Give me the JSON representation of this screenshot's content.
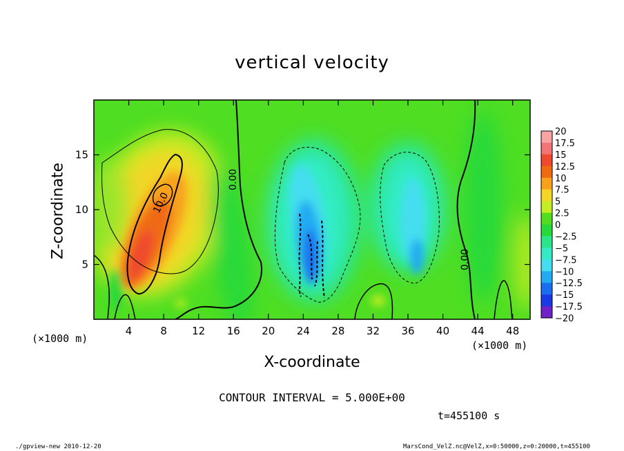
{
  "chart_data": {
    "type": "heatmap",
    "title": "vertical velocity",
    "xlabel": "X-coordinate",
    "ylabel": "Z-coordinate",
    "x_unit": "(×1000 m)",
    "xlim": [
      0,
      50
    ],
    "ylim": [
      0,
      20
    ],
    "x_ticks": [
      4,
      8,
      12,
      16,
      20,
      24,
      28,
      32,
      36,
      40,
      44,
      48
    ],
    "y_ticks": [
      5,
      10,
      15
    ],
    "contour_interval": "CONTOUR INTERVAL = 5.000E+00",
    "contour_labels": [
      "10.0",
      "0.00",
      "0.00"
    ],
    "colorbar": {
      "levels": [
        20,
        17.5,
        15,
        12.5,
        10,
        7.5,
        5,
        2.5,
        0,
        -2.5,
        -5,
        -7.5,
        -10,
        -12.5,
        -15,
        -17.5,
        -20
      ],
      "colors": [
        "#f9a3a3",
        "#f27474",
        "#ef4a2e",
        "#f06a12",
        "#f7a21a",
        "#f3d527",
        "#c6ec23",
        "#52dd1e",
        "#27d93a",
        "#2ce58a",
        "#33ecc6",
        "#44def0",
        "#22aaf2",
        "#1a6ff0",
        "#1a3ae6",
        "#1414c7",
        "#6e22c8"
      ]
    },
    "features": [
      {
        "name": "updraft",
        "x": 7.5,
        "z": 9.5,
        "peak": 12
      },
      {
        "name": "downdraft",
        "x": 24.5,
        "z": 7.5,
        "peak": -11
      },
      {
        "name": "downdraft",
        "x": 36.0,
        "z": 8.0,
        "peak": -8
      }
    ]
  },
  "time_label": "t=455100 s",
  "footer": {
    "left": "./gpview-new  2010-12-20",
    "right": "MarsCond_VelZ.nc@VelZ,x=0:50000,z=0:20000,t=455100"
  }
}
